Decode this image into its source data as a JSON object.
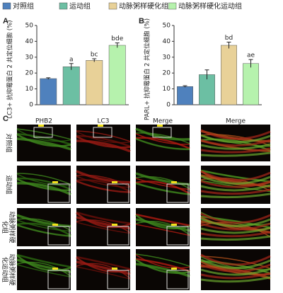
{
  "chart_data": [
    {
      "type": "bar",
      "panel": "A",
      "y_label": "LC3+ 抗抑霉蛋白 2 共定位细胞 (%)",
      "ylim": [
        0,
        50
      ],
      "yticks": [
        0,
        10,
        20,
        30,
        40,
        50
      ],
      "series": [
        {
          "name": "对照组",
          "color": "#4f81bd",
          "values": [
            16.5
          ],
          "errors": [
            0.5
          ]
        },
        {
          "name": "运动组",
          "color": "#6cbfa3",
          "values": [
            24
          ],
          "errors": [
            2
          ],
          "annotation": "a"
        },
        {
          "name": "动脉粥样硬化组",
          "color": "#e8d198",
          "values": [
            28
          ],
          "errors": [
            1
          ],
          "annotation": "bc"
        },
        {
          "name": "动脉粥样硬化运动组",
          "color": "#b6f2ad",
          "values": [
            37.5
          ],
          "errors": [
            1.5
          ],
          "annotation": "bde"
        }
      ]
    },
    {
      "type": "bar",
      "panel": "B",
      "y_label": "PARL+ 抗抑霉蛋白 2 共定位细胞 (%)",
      "ylim": [
        0,
        50
      ],
      "yticks": [
        0,
        10,
        20,
        30,
        40,
        50
      ],
      "series": [
        {
          "color": "#4f81bd",
          "values": [
            11.5
          ],
          "errors": [
            0.5
          ]
        },
        {
          "color": "#6cbfa3",
          "values": [
            19
          ],
          "errors": [
            3
          ]
        },
        {
          "color": "#e8d198",
          "values": [
            37.5
          ],
          "errors": [
            2
          ],
          "annotation": "bd"
        },
        {
          "color": "#b6f2ad",
          "values": [
            26
          ],
          "errors": [
            2.5
          ],
          "annotation": "ae"
        }
      ]
    }
  ],
  "panel_c": {
    "panel": "C",
    "columns": [
      "PHB2",
      "LC3",
      "Merge",
      "Merge"
    ],
    "rows": [
      "对照组",
      "运动组",
      "动脉粥样硬化组",
      "动脉粥样硬化运动组"
    ]
  }
}
